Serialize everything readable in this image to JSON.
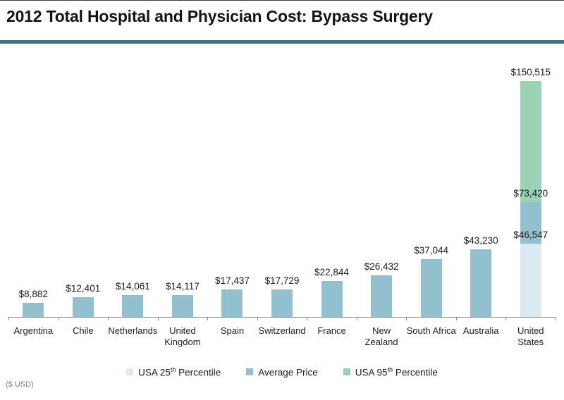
{
  "page": {
    "title": "2012 Total Hospital and Physician Cost: Bypass Surgery",
    "unit_note": "($ USD)"
  },
  "colors": {
    "divider": "#297b95",
    "p25": "#dbe9f1",
    "average": "#92c0cf",
    "p95": "#99d2b5",
    "axis": "#8c8c8c"
  },
  "legend": {
    "items": [
      {
        "series": "p25",
        "prefix": "USA 25",
        "sup": "th",
        "suffix": " Percentile"
      },
      {
        "series": "average",
        "prefix": "Average Price",
        "sup": "",
        "suffix": ""
      },
      {
        "series": "p95",
        "prefix": "USA  95",
        "sup": "th",
        "suffix": " Percentile"
      }
    ]
  },
  "chart_data": {
    "type": "bar",
    "title": "2012 Total Hospital and Physician Cost: Bypass Surgery",
    "xlabel": "",
    "ylabel": "($ USD)",
    "ylim": [
      0,
      160000
    ],
    "grid": false,
    "legend_position": "bottom",
    "value_labels_shown": true,
    "series_names": {
      "p25": "USA 25th Percentile",
      "average": "Average Price",
      "p95": "USA 95th Percentile"
    },
    "categories": [
      "Argentina",
      "Chile",
      "Netherlands",
      "United Kingdom",
      "Spain",
      "Switzerland",
      "France",
      "New Zealand",
      "South Africa",
      "Australia",
      "United States"
    ],
    "category_label_lines": [
      [
        "Argentina"
      ],
      [
        "Chile"
      ],
      [
        "Netherlands"
      ],
      [
        "United",
        "Kingdom"
      ],
      [
        "Spain"
      ],
      [
        "Switzerland"
      ],
      [
        "France"
      ],
      [
        "New",
        "Zealand"
      ],
      [
        "South Africa"
      ],
      [
        "Australia"
      ],
      [
        "United",
        "States"
      ]
    ],
    "segment_value_meaning": "cumulative top of segment in USD",
    "bars": [
      {
        "category": "Argentina",
        "segments": [
          {
            "series": "average",
            "value": 8882,
            "label": "$8,882"
          }
        ]
      },
      {
        "category": "Chile",
        "segments": [
          {
            "series": "average",
            "value": 12401,
            "label": "$12,401"
          }
        ]
      },
      {
        "category": "Netherlands",
        "segments": [
          {
            "series": "average",
            "value": 14061,
            "label": "$14,061"
          }
        ]
      },
      {
        "category": "United Kingdom",
        "segments": [
          {
            "series": "average",
            "value": 14117,
            "label": "$14,117"
          }
        ]
      },
      {
        "category": "Spain",
        "segments": [
          {
            "series": "average",
            "value": 17437,
            "label": "$17,437"
          }
        ]
      },
      {
        "category": "Switzerland",
        "segments": [
          {
            "series": "average",
            "value": 17729,
            "label": "$17,729"
          }
        ]
      },
      {
        "category": "France",
        "segments": [
          {
            "series": "average",
            "value": 22844,
            "label": "$22,844"
          }
        ]
      },
      {
        "category": "New Zealand",
        "segments": [
          {
            "series": "average",
            "value": 26432,
            "label": "$26,432"
          }
        ]
      },
      {
        "category": "South Africa",
        "segments": [
          {
            "series": "average",
            "value": 37044,
            "label": "$37,044"
          }
        ]
      },
      {
        "category": "Australia",
        "segments": [
          {
            "series": "average",
            "value": 43230,
            "label": "$43,230"
          }
        ]
      },
      {
        "category": "United States",
        "segments": [
          {
            "series": "p25",
            "value": 46547,
            "label": "$46,547"
          },
          {
            "series": "average",
            "value": 73420,
            "label": "$73,420"
          },
          {
            "series": "p95",
            "value": 150515,
            "label": "$150,515"
          }
        ]
      }
    ]
  }
}
